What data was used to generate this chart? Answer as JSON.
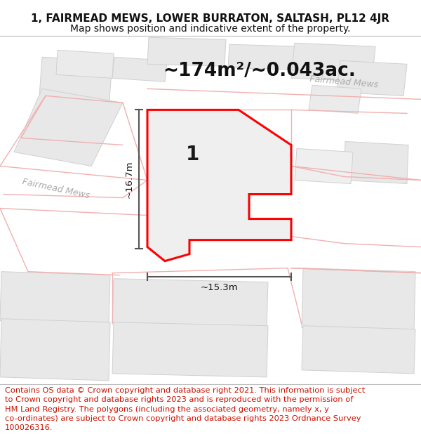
{
  "title_line1": "1, FAIRMEAD MEWS, LOWER BURRATON, SALTASH, PL12 4JR",
  "title_line2": "Map shows position and indicative extent of the property.",
  "area_text": "~174m²/~0.043ac.",
  "dim_height": "~16.7m",
  "dim_width": "~15.3m",
  "plot_number": "1",
  "footer_text": "Contains OS data © Crown copyright and database right 2021. This information is subject to Crown copyright and database rights 2023 and is reproduced with the permission of HM Land Registry. The polygons (including the associated geometry, namely x, y co-ordinates) are subject to Crown copyright and database rights 2023 Ordnance Survey 100026316.",
  "bg_color": "#ffffff",
  "map_bg": "#ffffff",
  "block_fill": "#e8e8e8",
  "block_edge": "#d0d0d0",
  "road_pink": "#f0b0b0",
  "plot_outline_color": "#ff0000",
  "plot_fill_color": "#efefef",
  "building_fill_color": "#d8d8d8",
  "building_edge_color": "#cccccc",
  "dim_line_color": "#555555",
  "title_fontsize": 11,
  "subtitle_fontsize": 10,
  "area_fontsize": 19,
  "footer_fontsize": 8.2,
  "road_label_color": "#aaaaaa",
  "road_label_size": 9
}
